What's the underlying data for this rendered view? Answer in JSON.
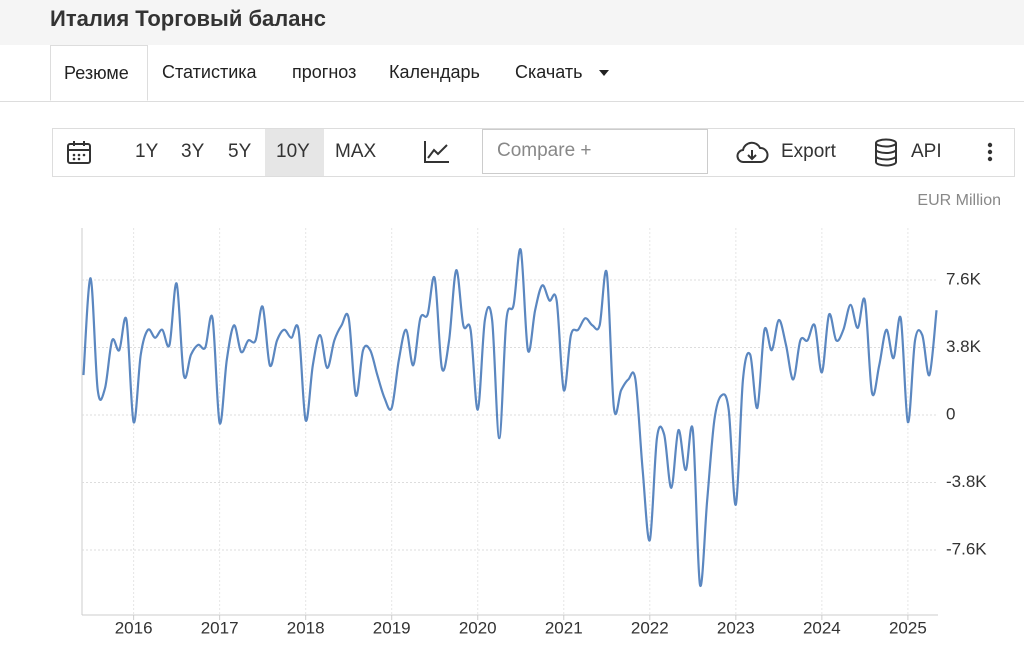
{
  "header": {
    "title": "Италия Торговый баланс"
  },
  "tabs": [
    "Резюме",
    "Статистика",
    "прогноз",
    "Календарь",
    "Скачать"
  ],
  "toolbar": {
    "ranges": [
      "1Y",
      "3Y",
      "5Y",
      "10Y",
      "MAX"
    ],
    "compare": "Compare +",
    "export": "Export",
    "api": "API"
  },
  "chart_data": {
    "type": "line",
    "unit": "EUR Million",
    "color": "#5b87c0",
    "x": [
      2015.417,
      2015.5,
      2015.583,
      2015.667,
      2015.75,
      2015.833,
      2015.917,
      2016,
      2016.083,
      2016.167,
      2016.25,
      2016.333,
      2016.417,
      2016.5,
      2016.583,
      2016.667,
      2016.75,
      2016.833,
      2016.917,
      2017,
      2017.083,
      2017.167,
      2017.25,
      2017.333,
      2017.417,
      2017.5,
      2017.583,
      2017.667,
      2017.75,
      2017.833,
      2017.917,
      2018,
      2018.083,
      2018.167,
      2018.25,
      2018.333,
      2018.417,
      2018.5,
      2018.583,
      2018.667,
      2018.75,
      2018.833,
      2018.917,
      2019,
      2019.083,
      2019.167,
      2019.25,
      2019.333,
      2019.417,
      2019.5,
      2019.583,
      2019.667,
      2019.75,
      2019.833,
      2019.917,
      2020,
      2020.083,
      2020.167,
      2020.25,
      2020.333,
      2020.417,
      2020.5,
      2020.583,
      2020.667,
      2020.75,
      2020.833,
      2020.917,
      2021,
      2021.083,
      2021.167,
      2021.25,
      2021.333,
      2021.417,
      2021.5,
      2021.583,
      2021.667,
      2021.75,
      2021.833,
      2021.917,
      2022,
      2022.083,
      2022.167,
      2022.25,
      2022.333,
      2022.417,
      2022.5,
      2022.583,
      2022.667,
      2022.75,
      2022.833,
      2022.917,
      2023,
      2023.083,
      2023.167,
      2023.25,
      2023.333,
      2023.417,
      2023.5,
      2023.583,
      2023.667,
      2023.75,
      2023.833,
      2023.917,
      2024,
      2024.083,
      2024.167,
      2024.25,
      2024.333,
      2024.417,
      2024.5,
      2024.583,
      2024.667,
      2024.75,
      2024.833,
      2024.917,
      2025,
      2025.083,
      2025.167,
      2025.25,
      2025.333
    ],
    "values": [
      2250,
      7700,
      1400,
      1500,
      4200,
      3650,
      5350,
      -400,
      3400,
      4800,
      4350,
      4800,
      3950,
      7400,
      2250,
      3400,
      3950,
      3800,
      5450,
      -450,
      3100,
      5050,
      3550,
      4200,
      4200,
      6100,
      2800,
      4200,
      4800,
      4350,
      4800,
      -300,
      2800,
      4500,
      2650,
      4200,
      5050,
      5450,
      1100,
      3650,
      3650,
      2250,
      950,
      400,
      3100,
      4800,
      2800,
      5450,
      5650,
      7700,
      2650,
      4200,
      8150,
      5050,
      4800,
      300,
      5350,
      5350,
      -1300,
      5350,
      6200,
      9300,
      3650,
      5900,
      7300,
      6450,
      6450,
      1400,
      4500,
      4800,
      5450,
      5050,
      5050,
      8000,
      400,
      1400,
      2000,
      2000,
      -3100,
      -7050,
      -1300,
      -1100,
      -4100,
      -850,
      -3100,
      -850,
      -9550,
      -4800,
      -300,
      1100,
      300,
      -5050,
      2000,
      3400,
      400,
      4800,
      3650,
      5350,
      3950,
      2000,
      4200,
      4200,
      5050,
      2400,
      5650,
      4200,
      4800,
      6200,
      4900,
      6450,
      1250,
      2800,
      4800,
      3200,
      5450,
      -400,
      4200,
      4500,
      2250,
      5900
    ],
    "xlim": [
      2015.4,
      2025.35
    ],
    "xticks": [
      2016,
      2017,
      2018,
      2019,
      2020,
      2021,
      2022,
      2023,
      2024,
      2025
    ],
    "ylim": [
      -11260,
      10530
    ],
    "yticks": [
      {
        "value": -7600,
        "label": "-7.6K"
      },
      {
        "value": -3800,
        "label": "-3.8K"
      },
      0,
      {
        "value": 3800,
        "label": "3.8K"
      },
      {
        "value": 7600,
        "label": "7.6K"
      }
    ],
    "grid": true
  }
}
